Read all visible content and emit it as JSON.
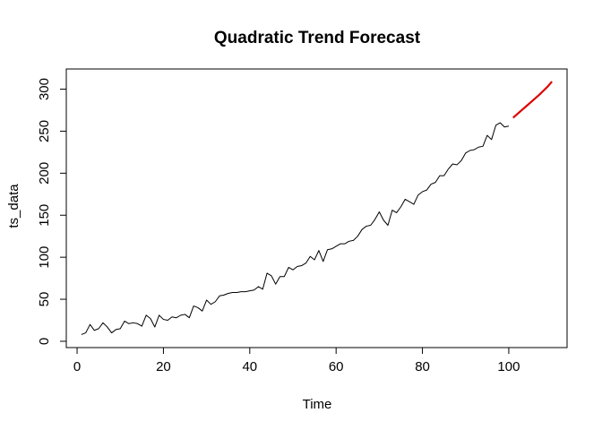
{
  "chart_data": {
    "type": "line",
    "title": "Quadratic Trend Forecast",
    "xlabel": "Time",
    "ylabel": "ts_data",
    "xlim": [
      -2.5,
      113.5
    ],
    "ylim": [
      -7.5,
      324
    ],
    "x_ticks": [
      0,
      20,
      40,
      60,
      80,
      100
    ],
    "y_ticks": [
      0,
      50,
      100,
      150,
      200,
      250,
      300
    ],
    "grid": false,
    "series": [
      {
        "color": "#000000",
        "x_start": 1,
        "values": [
          8,
          10,
          20,
          13,
          15,
          22,
          17,
          10,
          14,
          15,
          24,
          21,
          22,
          21,
          18,
          31,
          27,
          17,
          31,
          26,
          25,
          29,
          28,
          31,
          32,
          28,
          42,
          40,
          36,
          49,
          44,
          47,
          54,
          55,
          57,
          58,
          58,
          59,
          59,
          60,
          61,
          65,
          62,
          81,
          78,
          68,
          77,
          77,
          88,
          85,
          89,
          90,
          93,
          101,
          97,
          108,
          95,
          109,
          110,
          113,
          116,
          116,
          119,
          120,
          125,
          133,
          137,
          138,
          145,
          154,
          144,
          138,
          156,
          153,
          160,
          169,
          166,
          163,
          174,
          178,
          180,
          187,
          189,
          197,
          197,
          205,
          211,
          210,
          215,
          224,
          227,
          228,
          231,
          232,
          245,
          240,
          257,
          260,
          255,
          256
        ]
      },
      {
        "color": "#dd0000",
        "x": [
          101,
          102,
          103,
          104,
          105,
          106,
          107,
          108,
          109,
          110
        ],
        "values": [
          266,
          270.5,
          275,
          279.5,
          284,
          288.5,
          293,
          298,
          303,
          309
        ]
      }
    ]
  }
}
